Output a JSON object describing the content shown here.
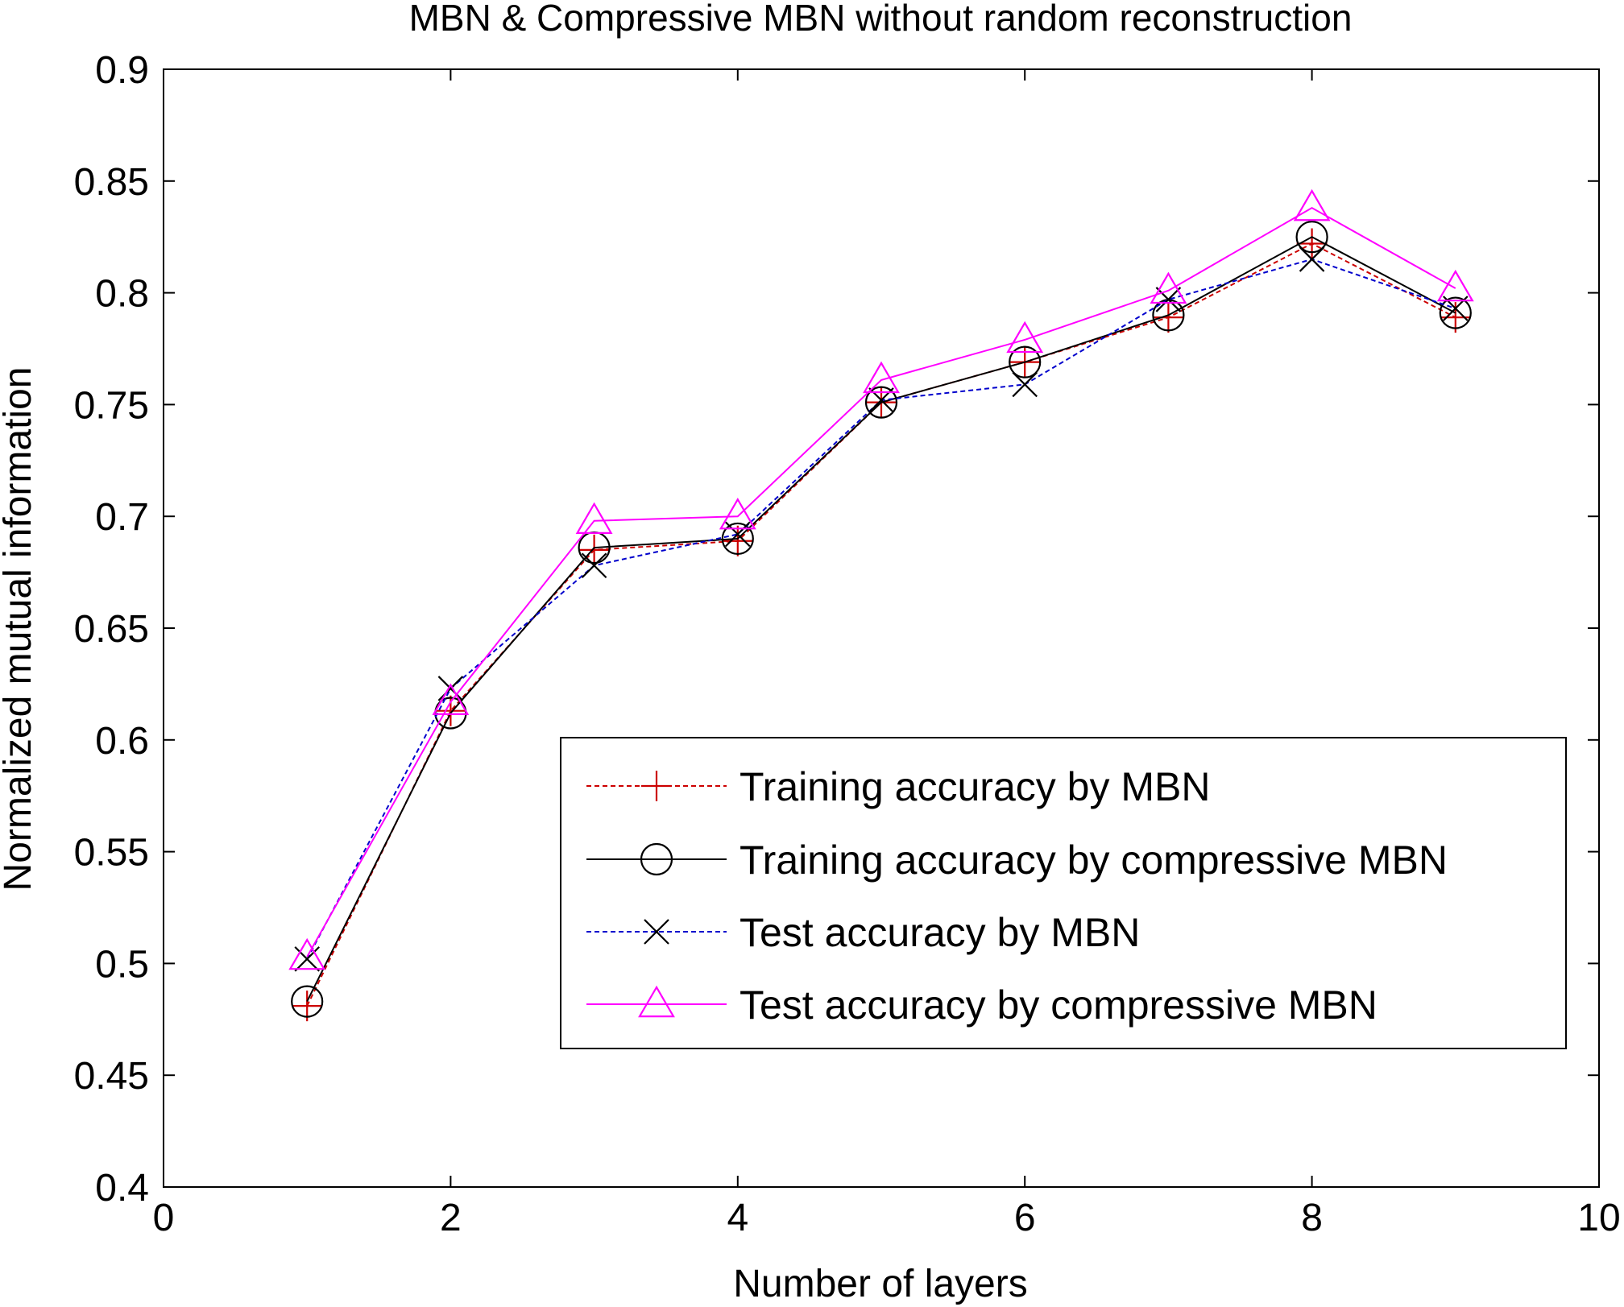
{
  "chart_data": {
    "type": "line",
    "title": "MBN & Compressive MBN without random reconstruction",
    "xlabel": "Number of layers",
    "ylabel": "Normalized mutual information",
    "xlim": [
      0,
      10
    ],
    "ylim": [
      0.4,
      0.9
    ],
    "xticks": [
      0,
      2,
      4,
      6,
      8,
      10
    ],
    "yticks": [
      0.4,
      0.45,
      0.5,
      0.55,
      0.6,
      0.65,
      0.7,
      0.75,
      0.8,
      0.85,
      0.9
    ],
    "xtick_labels": [
      "0",
      "2",
      "4",
      "6",
      "8",
      "10"
    ],
    "ytick_labels": [
      "0.4",
      "0.45",
      "0.5",
      "0.55",
      "0.6",
      "0.65",
      "0.7",
      "0.75",
      "0.8",
      "0.85",
      "0.9"
    ],
    "grid": false,
    "legend_position": "lower-right",
    "x": [
      1,
      2,
      3,
      4,
      5,
      6,
      7,
      8,
      9
    ],
    "series": [
      {
        "name": "Training accuracy by MBN",
        "values": [
          0.481,
          0.613,
          0.685,
          0.689,
          0.751,
          0.769,
          0.789,
          0.822,
          0.789
        ],
        "color": "#cc0000",
        "marker": "plus",
        "line_style": "dashed"
      },
      {
        "name": "Training accuracy by compressive MBN",
        "values": [
          0.483,
          0.612,
          0.686,
          0.69,
          0.751,
          0.769,
          0.79,
          0.825,
          0.791
        ],
        "color": "#000000",
        "marker": "circle",
        "line_style": "solid"
      },
      {
        "name": "Test accuracy by MBN",
        "values": [
          0.502,
          0.623,
          0.678,
          0.692,
          0.752,
          0.759,
          0.797,
          0.815,
          0.793
        ],
        "color": "#0000cc",
        "marker": "x",
        "line_style": "dashed"
      },
      {
        "name": "Test accuracy by compressive MBN",
        "values": [
          0.503,
          0.617,
          0.698,
          0.7,
          0.761,
          0.779,
          0.801,
          0.838,
          0.802
        ],
        "color": "#ff00ff",
        "marker": "triangle",
        "line_style": "solid"
      }
    ]
  }
}
